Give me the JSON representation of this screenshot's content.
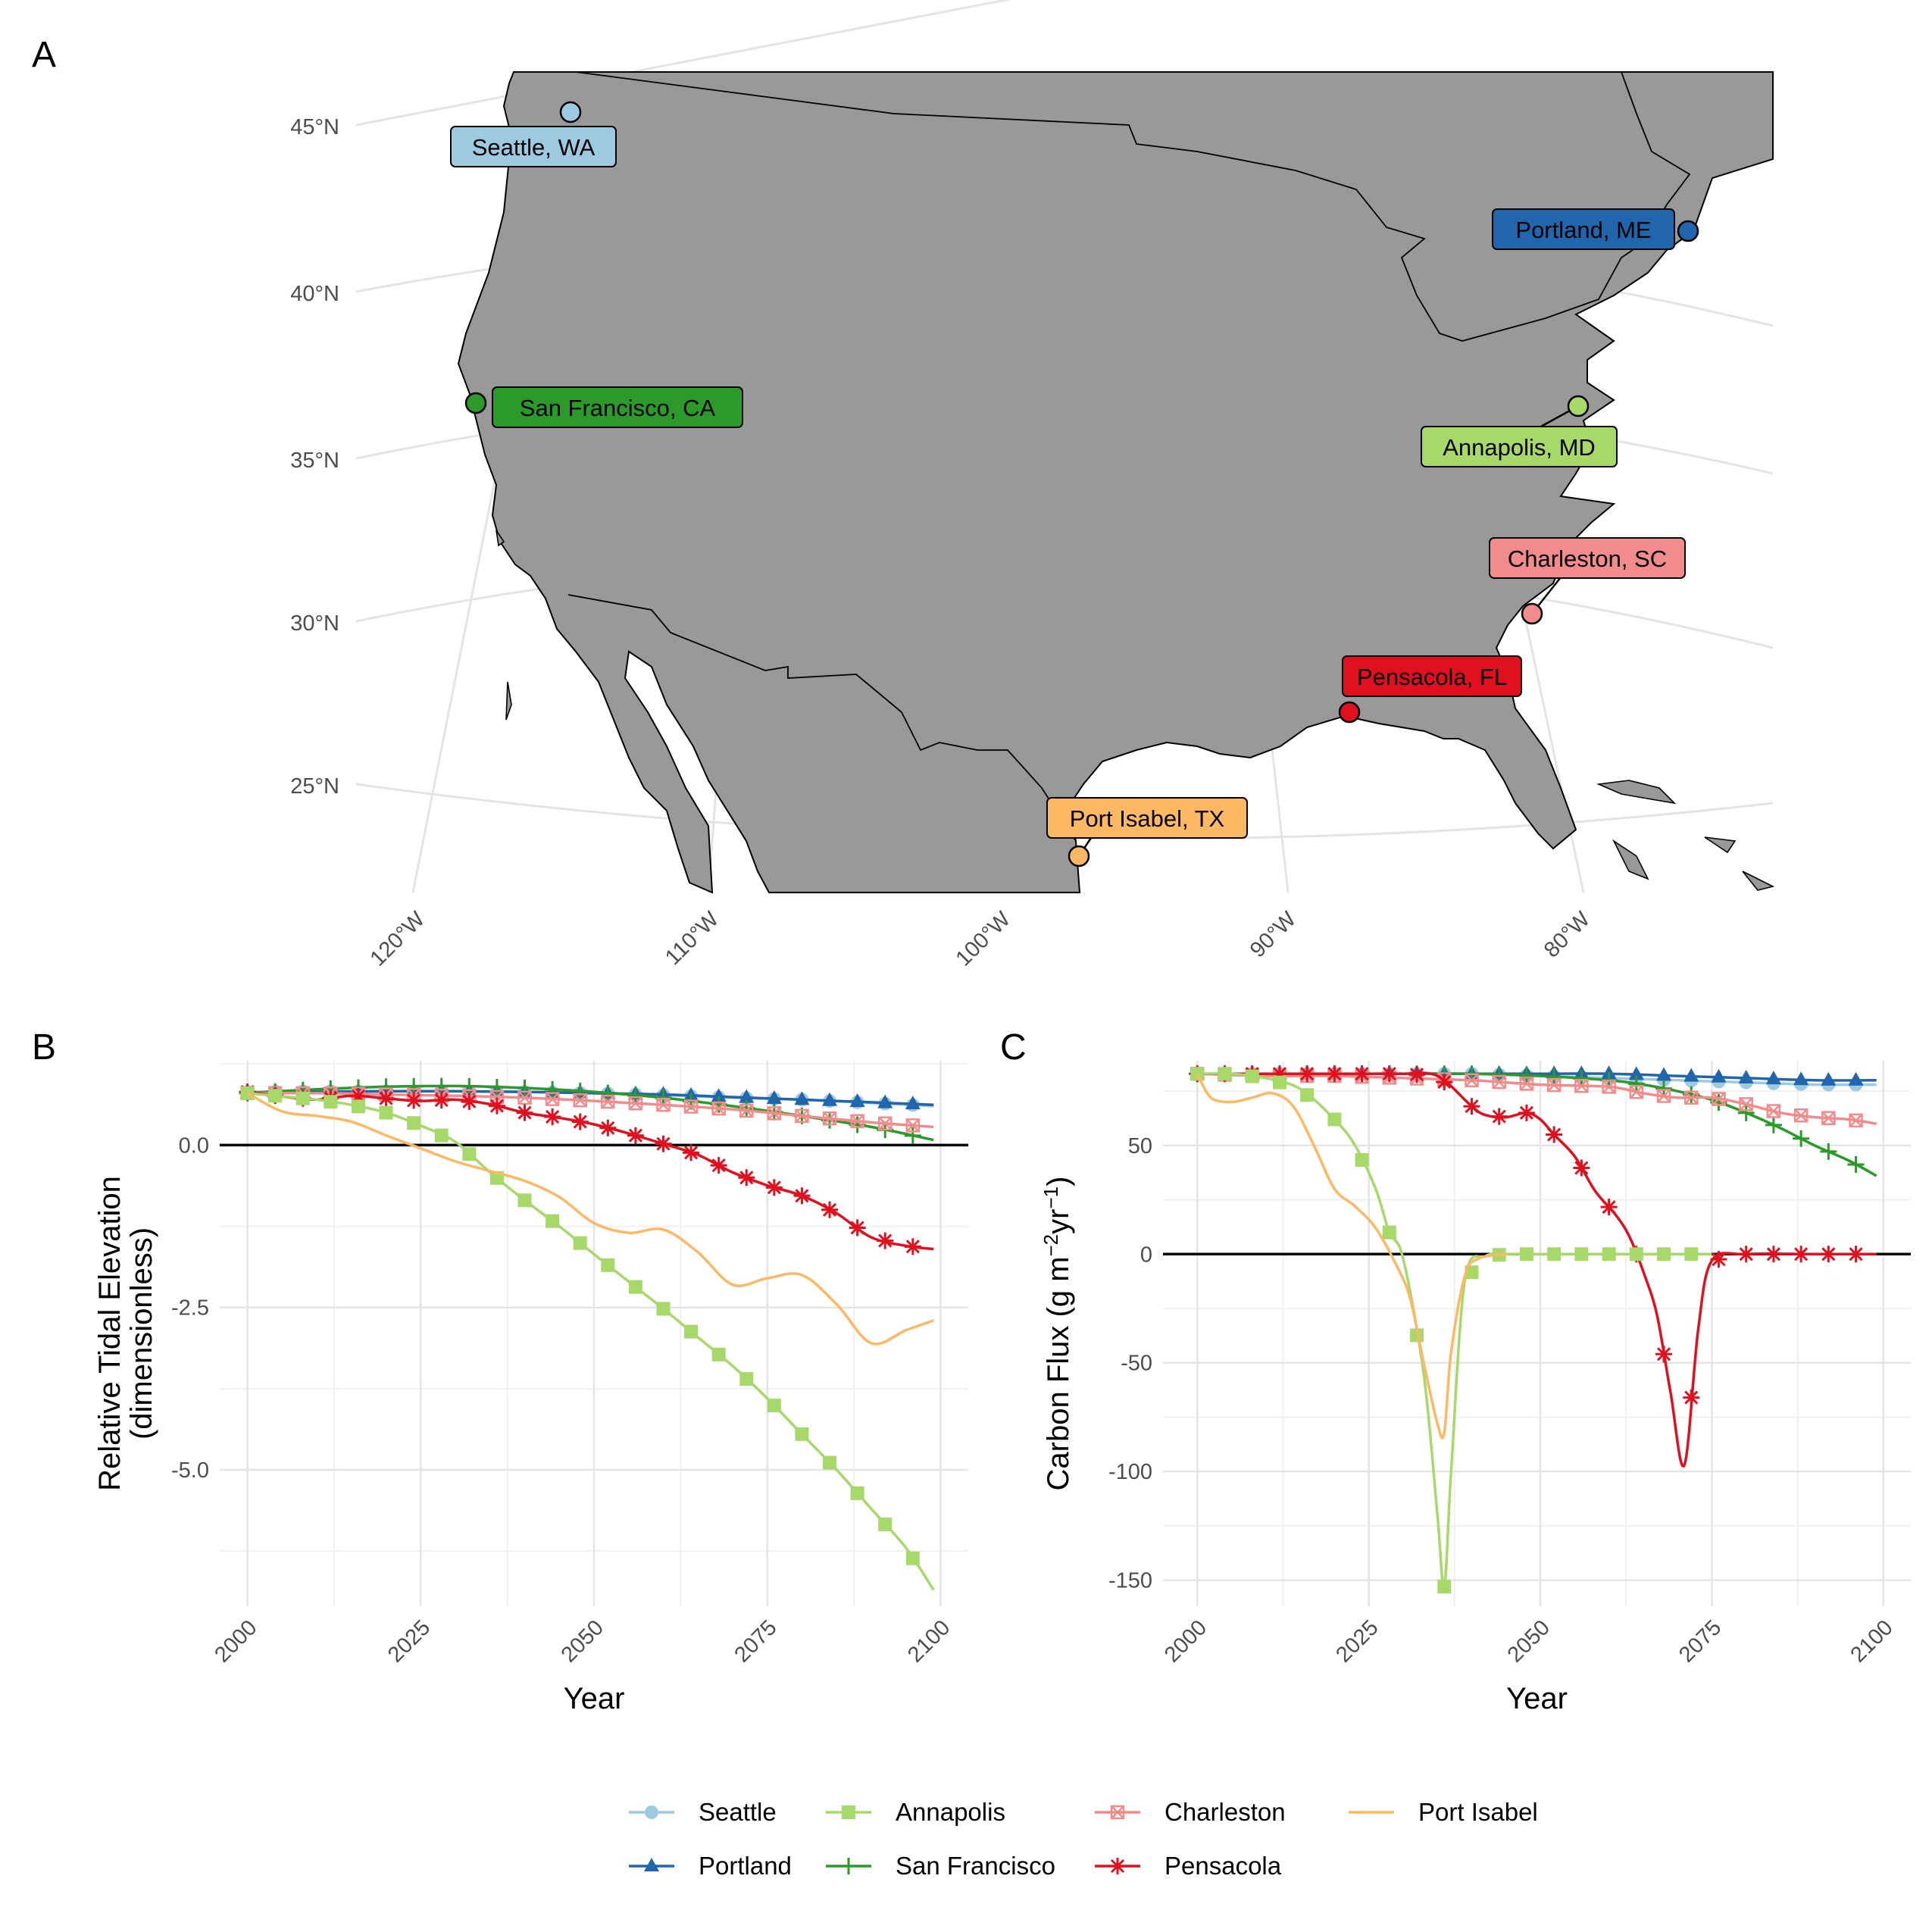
{
  "panels": {
    "a": {
      "letter": "A",
      "lat_ticks": [
        "45°N",
        "40°N",
        "35°N",
        "30°N",
        "25°N"
      ],
      "lon_ticks": [
        "120°W",
        "110°W",
        "100°W",
        "90°W",
        "80°W"
      ],
      "land_color": "#999999",
      "sites": [
        {
          "label": "Seattle, WA",
          "series": "Seattle"
        },
        {
          "label": "Portland, ME",
          "series": "Portland"
        },
        {
          "label": "San Francisco, CA",
          "series": "San Francisco"
        },
        {
          "label": "Annapolis, MD",
          "series": "Annapolis"
        },
        {
          "label": "Charleston, SC",
          "series": "Charleston"
        },
        {
          "label": "Pensacola, FL",
          "series": "Pensacola"
        },
        {
          "label": "Port Isabel, TX",
          "series": "Port Isabel"
        }
      ]
    },
    "b": {
      "letter": "B"
    },
    "c": {
      "letter": "C"
    }
  },
  "legend": {
    "items": [
      {
        "name": "Seattle",
        "color": "#9ECAE1",
        "marker": "circle"
      },
      {
        "name": "Annapolis",
        "color": "#A6D96A",
        "marker": "square"
      },
      {
        "name": "Charleston",
        "color": "#F28C8C",
        "marker": "boxx"
      },
      {
        "name": "Port Isabel",
        "color": "#FDB863",
        "marker": "none"
      },
      {
        "name": "Portland",
        "color": "#2166AC",
        "marker": "triangle"
      },
      {
        "name": "San Francisco",
        "color": "#2B9A2B",
        "marker": "plus"
      },
      {
        "name": "Pensacola",
        "color": "#E0101E",
        "marker": "star"
      }
    ]
  },
  "chart_data": [
    {
      "type": "line",
      "panel": "B",
      "xlabel": "Year",
      "ylabel": "Relative Tidal Elevation",
      "ylabel_line2": "(dimensionless)",
      "xlim": [
        1996,
        2104
      ],
      "ylim": [
        -7.1,
        1.3
      ],
      "x_ticks": [
        2000,
        2025,
        2050,
        2075,
        2100
      ],
      "y_ticks": [
        0.0,
        -2.5,
        -5.0
      ],
      "y_tick_labels": [
        "0.0",
        "-2.5",
        "-5.0"
      ],
      "minor_y": [
        1.25,
        -1.25,
        -3.75,
        -6.25
      ],
      "zero_line": true,
      "series": [
        {
          "name": "Seattle",
          "x": [
            2000,
            2010,
            2020,
            2030,
            2040,
            2050,
            2060,
            2070,
            2080,
            2090,
            2099
          ],
          "y": [
            0.82,
            0.83,
            0.83,
            0.83,
            0.82,
            0.8,
            0.77,
            0.73,
            0.7,
            0.65,
            0.6
          ]
        },
        {
          "name": "Portland",
          "x": [
            2000,
            2010,
            2020,
            2030,
            2040,
            2050,
            2060,
            2070,
            2080,
            2090,
            2099
          ],
          "y": [
            0.8,
            0.82,
            0.83,
            0.83,
            0.82,
            0.8,
            0.78,
            0.74,
            0.7,
            0.66,
            0.62
          ]
        },
        {
          "name": "San Francisco",
          "x": [
            2000,
            2010,
            2020,
            2030,
            2040,
            2050,
            2060,
            2070,
            2080,
            2090,
            2099
          ],
          "y": [
            0.8,
            0.86,
            0.9,
            0.91,
            0.88,
            0.82,
            0.73,
            0.6,
            0.45,
            0.28,
            0.08
          ]
        },
        {
          "name": "Charleston",
          "x": [
            2000,
            2010,
            2020,
            2030,
            2040,
            2050,
            2060,
            2070,
            2080,
            2090,
            2099
          ],
          "y": [
            0.8,
            0.8,
            0.78,
            0.76,
            0.73,
            0.68,
            0.62,
            0.55,
            0.45,
            0.35,
            0.28
          ]
        },
        {
          "name": "Pensacola",
          "x": [
            2000,
            2005,
            2010,
            2015,
            2020,
            2025,
            2030,
            2035,
            2040,
            2045,
            2050,
            2055,
            2060,
            2065,
            2070,
            2075,
            2080,
            2085,
            2090,
            2095,
            2099
          ],
          "y": [
            0.82,
            0.75,
            0.7,
            0.76,
            0.72,
            0.68,
            0.7,
            0.63,
            0.5,
            0.42,
            0.32,
            0.18,
            0.02,
            -0.15,
            -0.42,
            -0.62,
            -0.78,
            -1.05,
            -1.42,
            -1.55,
            -1.6
          ]
        },
        {
          "name": "Annapolis",
          "x": [
            2000,
            2005,
            2010,
            2015,
            2020,
            2025,
            2030,
            2035,
            2040,
            2045,
            2050,
            2055,
            2060,
            2065,
            2070,
            2075,
            2080,
            2085,
            2090,
            2095,
            2099
          ],
          "y": [
            0.8,
            0.75,
            0.7,
            0.62,
            0.5,
            0.3,
            0.05,
            -0.42,
            -0.85,
            -1.25,
            -1.68,
            -2.1,
            -2.52,
            -2.96,
            -3.4,
            -3.9,
            -4.45,
            -5.0,
            -5.6,
            -6.2,
            -6.85
          ]
        },
        {
          "name": "Port Isabel",
          "x": [
            2000,
            2005,
            2010,
            2015,
            2020,
            2025,
            2030,
            2035,
            2040,
            2045,
            2050,
            2055,
            2060,
            2065,
            2070,
            2075,
            2080,
            2085,
            2090,
            2095,
            2099
          ],
          "y": [
            0.8,
            0.52,
            0.45,
            0.36,
            0.15,
            -0.05,
            -0.25,
            -0.4,
            -0.55,
            -0.8,
            -1.2,
            -1.35,
            -1.3,
            -1.65,
            -2.15,
            -2.05,
            -2.0,
            -2.45,
            -3.05,
            -2.85,
            -2.7
          ]
        }
      ]
    },
    {
      "type": "line",
      "panel": "C",
      "xlabel": "Year",
      "ylabel": "Carbon Flux (g m",
      "ylabel_sup1": "−2",
      "ylabel_mid": "yr",
      "ylabel_sup2": "−1",
      "ylabel_end": ")",
      "xlim": [
        1995,
        2104
      ],
      "ylim": [
        -162,
        89
      ],
      "x_ticks": [
        2000,
        2025,
        2050,
        2075,
        2100
      ],
      "y_ticks": [
        50,
        0,
        -50,
        -100,
        -150
      ],
      "y_tick_labels": [
        "50",
        "0",
        "-50",
        "-100",
        "-150"
      ],
      "minor_y": [
        75,
        25,
        -25,
        -75,
        -125
      ],
      "zero_line": true,
      "series": [
        {
          "name": "Seattle",
          "x": [
            2000,
            2010,
            2020,
            2030,
            2040,
            2050,
            2060,
            2070,
            2080,
            2090,
            2099
          ],
          "y": [
            83,
            83,
            83,
            83,
            83,
            82,
            81,
            80,
            79,
            78,
            78
          ]
        },
        {
          "name": "Portland",
          "x": [
            2000,
            2010,
            2020,
            2030,
            2040,
            2050,
            2060,
            2070,
            2080,
            2090,
            2099
          ],
          "y": [
            83,
            83,
            83,
            83,
            83,
            83,
            83,
            82,
            81,
            80,
            80
          ]
        },
        {
          "name": "San Francisco",
          "x": [
            2000,
            2010,
            2020,
            2030,
            2040,
            2050,
            2060,
            2065,
            2070,
            2075,
            2080,
            2085,
            2090,
            2095,
            2099
          ],
          "y": [
            83,
            83,
            83,
            83,
            83,
            82,
            80,
            78,
            75,
            71,
            65,
            58,
            50,
            43,
            36
          ]
        },
        {
          "name": "Charleston",
          "x": [
            2000,
            2010,
            2020,
            2030,
            2040,
            2050,
            2060,
            2065,
            2070,
            2075,
            2080,
            2085,
            2090,
            2095,
            2099
          ],
          "y": [
            83,
            82,
            82,
            81,
            80,
            78,
            77,
            74,
            72,
            72,
            69,
            65,
            63,
            62,
            60
          ]
        },
        {
          "name": "Pensacola",
          "x": [
            2000,
            2005,
            2010,
            2015,
            2020,
            2025,
            2030,
            2035,
            2040,
            2042,
            2045,
            2048,
            2050,
            2052,
            2055,
            2058,
            2061,
            2063,
            2065,
            2067,
            2069,
            2071,
            2073,
            2075,
            2080,
            2090,
            2099
          ],
          "y": [
            83,
            83,
            83,
            83,
            83,
            83,
            83,
            82,
            68,
            64,
            63,
            65,
            62,
            55,
            45,
            29,
            18,
            8,
            -8,
            -28,
            -64,
            -97,
            -35,
            -3,
            0,
            0,
            0
          ]
        },
        {
          "name": "Annapolis",
          "x": [
            2000,
            2005,
            2010,
            2015,
            2020,
            2023,
            2026,
            2028,
            2030,
            2033,
            2035,
            2036,
            2037,
            2039,
            2042,
            2045,
            2050,
            2060,
            2070,
            2075
          ],
          "y": [
            83,
            83,
            81,
            76,
            62,
            50,
            30,
            10,
            -2,
            -55,
            -120,
            -153,
            -100,
            -12,
            -1,
            0,
            0,
            0,
            0,
            0
          ]
        },
        {
          "name": "Port Isabel",
          "x": [
            2000,
            2002,
            2005,
            2008,
            2011,
            2014,
            2017,
            2020,
            2023,
            2026,
            2029,
            2031,
            2033,
            2035,
            2036,
            2037,
            2039,
            2041,
            2045
          ],
          "y": [
            83,
            72,
            70,
            72,
            74,
            68,
            50,
            30,
            22,
            12,
            -5,
            -20,
            -50,
            -78,
            -82,
            -45,
            -10,
            -2,
            0
          ]
        }
      ]
    }
  ]
}
